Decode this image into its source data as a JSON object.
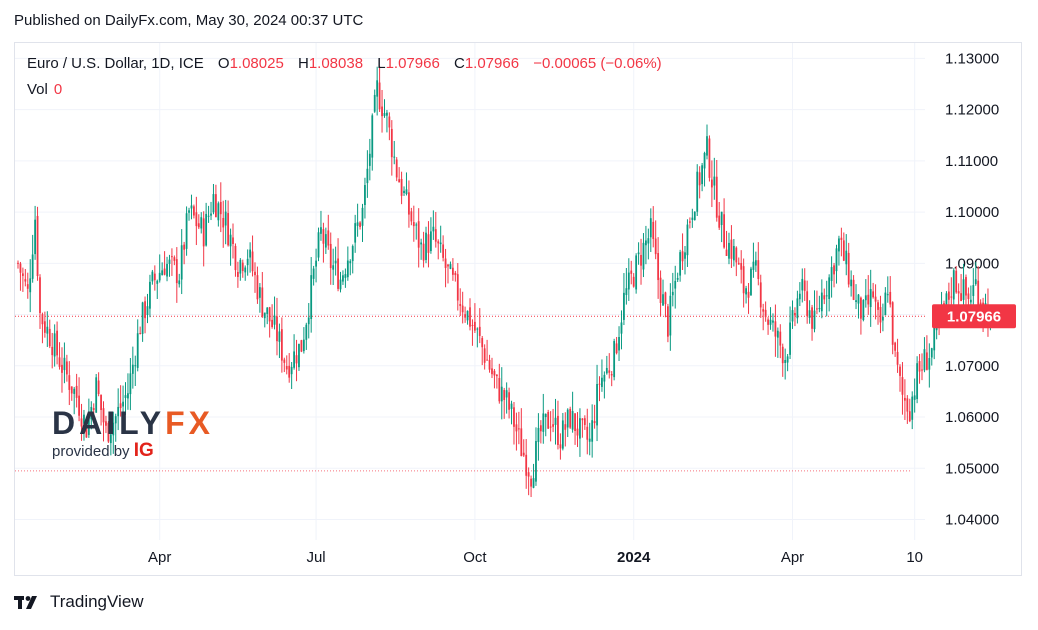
{
  "header": {
    "published": "Published on DailyFx.com, May 30, 2024 00:37 UTC"
  },
  "legend": {
    "symbol": "Euro / U.S. Dollar, 1D, ICE",
    "o_label": "O",
    "o_value": "1.08025",
    "h_label": "H",
    "h_value": "1.08038",
    "l_label": "L",
    "l_value": "1.07966",
    "c_label": "C",
    "c_value": "1.07966",
    "change": "−0.00065 (−0.06%)",
    "vol_label": "Vol",
    "vol_value": "0"
  },
  "watermark": {
    "word_a": "DAILY",
    "word_b": "FX",
    "sub": "provided by",
    "ig": "IG"
  },
  "brand": {
    "name": "TradingView"
  },
  "colors": {
    "up": "#089981",
    "down": "#f23645",
    "grid": "#f0f3fa",
    "axis_text": "#131722",
    "last_price_bg": "#f23645"
  },
  "chart_data": {
    "type": "candlestick",
    "title": "Euro / U.S. Dollar, 1D, ICE",
    "ylim": [
      1.036,
      1.133
    ],
    "yticks": [
      "1.13000",
      "1.12000",
      "1.11000",
      "1.10000",
      "1.09000",
      "1.08000",
      "1.07000",
      "1.06000",
      "1.05000",
      "1.04000"
    ],
    "ytick_values": [
      1.13,
      1.12,
      1.11,
      1.1,
      1.09,
      1.08,
      1.07,
      1.06,
      1.05,
      1.04
    ],
    "xticks": [
      {
        "label": "Apr",
        "date_index": 58,
        "bold": false
      },
      {
        "label": "Jul",
        "date_index": 122,
        "bold": false
      },
      {
        "label": "Oct",
        "date_index": 187,
        "bold": false
      },
      {
        "label": "2024",
        "date_index": 252,
        "bold": true
      },
      {
        "label": "Apr",
        "date_index": 317,
        "bold": false
      },
      {
        "label": "10",
        "date_index": 367,
        "bold": false
      }
    ],
    "total_slots": 370,
    "last_price": "1.07966",
    "last_price_value": 1.07966,
    "dotted_low_value": 1.0495,
    "anchors": [
      [
        0,
        1.09
      ],
      [
        4,
        1.084
      ],
      [
        7,
        1.099
      ],
      [
        9,
        1.08
      ],
      [
        13,
        1.076
      ],
      [
        18,
        1.07
      ],
      [
        24,
        1.064
      ],
      [
        28,
        1.058
      ],
      [
        32,
        1.066
      ],
      [
        36,
        1.057
      ],
      [
        40,
        1.06
      ],
      [
        45,
        1.065
      ],
      [
        50,
        1.078
      ],
      [
        55,
        1.086
      ],
      [
        60,
        1.09
      ],
      [
        66,
        1.088
      ],
      [
        70,
        1.1
      ],
      [
        76,
        1.096
      ],
      [
        80,
        1.103
      ],
      [
        85,
        1.098
      ],
      [
        90,
        1.09
      ],
      [
        94,
        1.092
      ],
      [
        100,
        1.082
      ],
      [
        106,
        1.076
      ],
      [
        110,
        1.07
      ],
      [
        116,
        1.074
      ],
      [
        120,
        1.085
      ],
      [
        124,
        1.096
      ],
      [
        128,
        1.09
      ],
      [
        132,
        1.087
      ],
      [
        136,
        1.093
      ],
      [
        141,
        1.1
      ],
      [
        144,
        1.112
      ],
      [
        147,
        1.124
      ],
      [
        151,
        1.118
      ],
      [
        155,
        1.108
      ],
      [
        160,
        1.1
      ],
      [
        165,
        1.093
      ],
      [
        170,
        1.095
      ],
      [
        176,
        1.088
      ],
      [
        182,
        1.082
      ],
      [
        188,
        1.076
      ],
      [
        192,
        1.071
      ],
      [
        196,
        1.066
      ],
      [
        200,
        1.063
      ],
      [
        203,
        1.059
      ],
      [
        206,
        1.054
      ],
      [
        210,
        1.049
      ],
      [
        214,
        1.057
      ],
      [
        218,
        1.06
      ],
      [
        222,
        1.056
      ],
      [
        226,
        1.06
      ],
      [
        230,
        1.057
      ],
      [
        234,
        1.055
      ],
      [
        238,
        1.067
      ],
      [
        241,
        1.069
      ],
      [
        244,
        1.072
      ],
      [
        248,
        1.083
      ],
      [
        252,
        1.088
      ],
      [
        256,
        1.093
      ],
      [
        259,
        1.096
      ],
      [
        262,
        1.087
      ],
      [
        266,
        1.078
      ],
      [
        270,
        1.089
      ],
      [
        274,
        1.097
      ],
      [
        278,
        1.105
      ],
      [
        282,
        1.112
      ],
      [
        285,
        1.104
      ],
      [
        289,
        1.095
      ],
      [
        293,
        1.092
      ],
      [
        297,
        1.085
      ],
      [
        302,
        1.088
      ],
      [
        306,
        1.08
      ],
      [
        310,
        1.076
      ],
      [
        314,
        1.072
      ],
      [
        317,
        1.078
      ],
      [
        320,
        1.085
      ],
      [
        323,
        1.082
      ],
      [
        326,
        1.078
      ],
      [
        329,
        1.084
      ],
      [
        332,
        1.087
      ],
      [
        336,
        1.094
      ],
      [
        340,
        1.088
      ],
      [
        343,
        1.082
      ],
      [
        346,
        1.08
      ],
      [
        350,
        1.084
      ],
      [
        353,
        1.076
      ],
      [
        356,
        1.086
      ],
      [
        359,
        1.071
      ],
      [
        362,
        1.064
      ],
      [
        365,
        1.062
      ],
      [
        368,
        1.068
      ],
      [
        371,
        1.071
      ],
      [
        374,
        1.073
      ],
      [
        377,
        1.078
      ],
      [
        380,
        1.082
      ],
      [
        383,
        1.087
      ],
      [
        386,
        1.085
      ],
      [
        389,
        1.083
      ],
      [
        392,
        1.086
      ],
      [
        395,
        1.082
      ],
      [
        398,
        1.08
      ]
    ]
  }
}
